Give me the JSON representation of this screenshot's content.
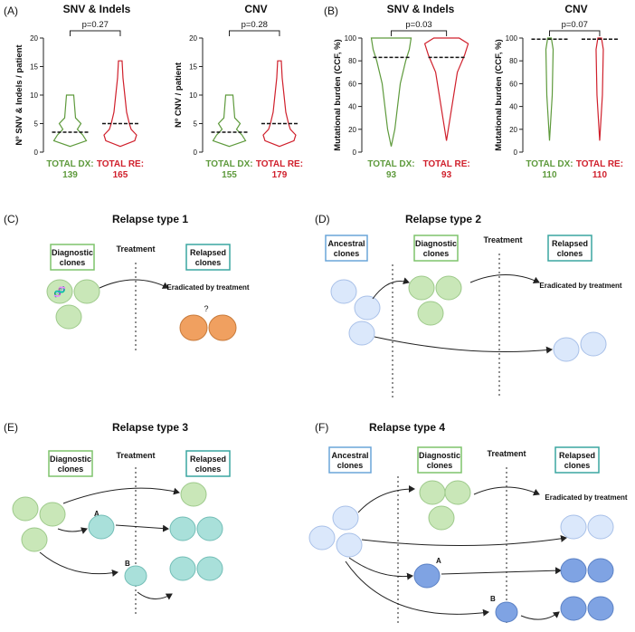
{
  "panels": {
    "A": {
      "label": "(A)",
      "charts": [
        {
          "title": "SNV & Indels",
          "ylabel": "Nº SNV & Indels / patient",
          "pvalue": "p=0.27",
          "yticks": [
            "0",
            "5",
            "10",
            "15",
            "20"
          ],
          "ylim": [
            0,
            20
          ],
          "series": [
            {
              "label": "TOTAL DX:",
              "count": "139",
              "color": "#5e9a3c"
            },
            {
              "label": "TOTAL RE:",
              "count": "165",
              "color": "#d0202c"
            }
          ]
        },
        {
          "title": "CNV",
          "ylabel": "Nº CNV / patient",
          "pvalue": "p=0.28",
          "yticks": [
            "0",
            "5",
            "10",
            "15",
            "20"
          ],
          "ylim": [
            0,
            20
          ],
          "series": [
            {
              "label": "TOTAL DX:",
              "count": "155",
              "color": "#5e9a3c"
            },
            {
              "label": "TOTAL RE:",
              "count": "179",
              "color": "#d0202c"
            }
          ]
        }
      ]
    },
    "B": {
      "label": "(B)",
      "charts": [
        {
          "title": "SNV & Indels",
          "ylabel": "Mutational burden (CCF, %)",
          "pvalue": "p=0.03",
          "yticks": [
            "0",
            "20",
            "40",
            "60",
            "80",
            "100"
          ],
          "ylim": [
            0,
            100
          ],
          "series": [
            {
              "label": "TOTAL DX:",
              "count": "93",
              "color": "#5e9a3c"
            },
            {
              "label": "TOTAL RE:",
              "count": "93",
              "color": "#d0202c"
            }
          ]
        },
        {
          "title": "CNV",
          "ylabel": "Mutational burden (CCF, %)",
          "pvalue": "p=0.07",
          "yticks": [
            "0",
            "20",
            "40",
            "60",
            "80",
            "100"
          ],
          "ylim": [
            0,
            100
          ],
          "series": [
            {
              "label": "TOTAL DX:",
              "count": "110",
              "color": "#5e9a3c"
            },
            {
              "label": "TOTAL RE:",
              "count": "110",
              "color": "#d0202c"
            }
          ]
        }
      ]
    },
    "C": {
      "label": "(C)",
      "title": "Relapse type 1",
      "diagnostic": "Diagnostic clones",
      "relapsed": "Relapsed clones",
      "treatment": "Treatment",
      "eradicated": "Eradicated by treatment",
      "question": "?"
    },
    "D": {
      "label": "(D)",
      "title": "Relapse type 2",
      "ancestral": "Ancestral clones",
      "diagnostic": "Diagnostic clones",
      "relapsed": "Relapsed clones",
      "treatment": "Treatment",
      "eradicated": "Eradicated by treatment"
    },
    "E": {
      "label": "(E)",
      "title": "Relapse type 3",
      "diagnostic": "Diagnostic clones",
      "relapsed": "Relapsed clones",
      "treatment": "Treatment",
      "a": "A",
      "b": "B"
    },
    "F": {
      "label": "(F)",
      "title": "Relapse type 4",
      "ancestral": "Ancestral clones",
      "diagnostic": "Diagnostic clones",
      "relapsed": "Relapsed clones",
      "treatment": "Treatment",
      "eradicated": "Eradicated by treatment",
      "a": "A",
      "b": "B"
    }
  },
  "colors": {
    "green_text": "#5e9a3c",
    "red_text": "#d0202c",
    "green_cell": "#c9e7b8",
    "orange_cell": "#f0a060",
    "teal_cell": "#a9e0da",
    "lightblue_cell": "#dbe8fb",
    "blue_cell": "#7fa3e3",
    "green_box": "#7ec46c",
    "teal_box": "#3aa6a0",
    "blue_box": "#6aa5d9"
  }
}
